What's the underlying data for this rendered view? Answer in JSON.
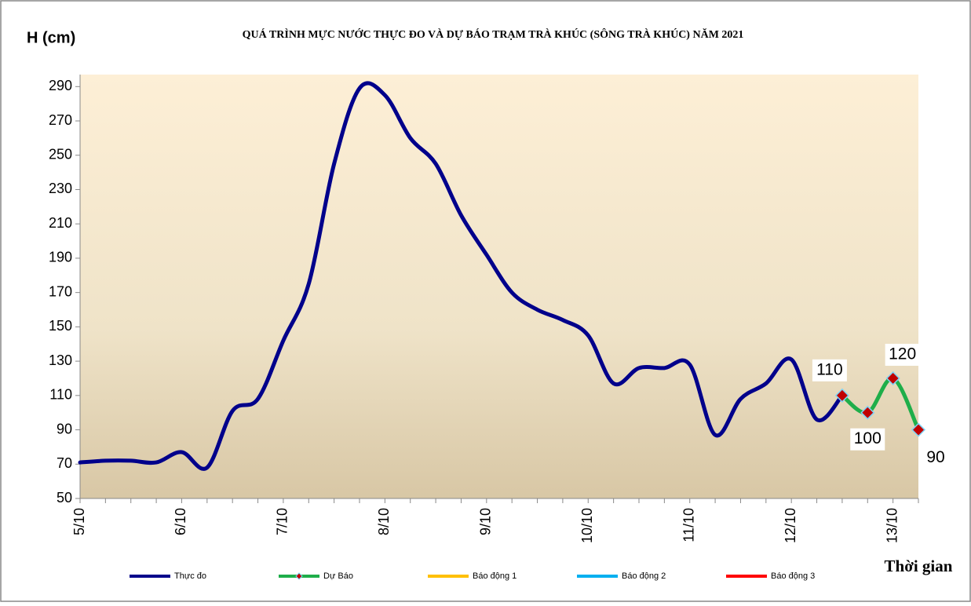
{
  "chart_data": {
    "type": "line",
    "title": "QUÁ TRÌNH MỰC NƯỚC THỰC ĐO VÀ DỰ BÁO TRẠM TRÀ KHÚC (SÔNG TRÀ KHÚC) NĂM  2021",
    "y_label": "H (cm)",
    "x_label": "Thời gian",
    "categories": [
      "5/10",
      null,
      null,
      null,
      "6/10",
      null,
      null,
      null,
      "7/10",
      null,
      null,
      null,
      "8/10",
      null,
      null,
      null,
      "9/10",
      null,
      null,
      null,
      "10/10",
      null,
      null,
      null,
      "11/10",
      null,
      null,
      null,
      "12/10",
      null,
      null,
      null,
      "13/10",
      null
    ],
    "series": [
      {
        "name": "Thực đo",
        "color": "#00008b",
        "values": [
          71,
          72,
          72,
          71,
          77,
          68,
          101,
          108,
          142,
          175,
          245,
          289,
          285,
          260,
          245,
          215,
          192,
          170,
          160,
          154,
          145,
          117,
          126,
          126,
          128,
          87,
          108,
          117,
          131,
          96,
          110,
          null,
          null,
          null
        ]
      },
      {
        "name": "Dự Báo",
        "color": "#1fae4a",
        "values": [
          null,
          null,
          null,
          null,
          null,
          null,
          null,
          null,
          null,
          null,
          null,
          null,
          null,
          null,
          null,
          null,
          null,
          null,
          null,
          null,
          null,
          null,
          null,
          null,
          null,
          null,
          null,
          null,
          null,
          null,
          110,
          100,
          120,
          90
        ],
        "data_labels": true
      }
    ],
    "alarm_legend": [
      {
        "name": "Báo động 1",
        "color": "#ffc000"
      },
      {
        "name": "Báo động 2",
        "color": "#00b0f0"
      },
      {
        "name": "Báo động 3",
        "color": "#ff0000"
      }
    ],
    "ylim": [
      50,
      297
    ],
    "yticks": [
      50,
      70,
      90,
      110,
      130,
      150,
      170,
      190,
      210,
      230,
      250,
      270,
      290
    ]
  }
}
